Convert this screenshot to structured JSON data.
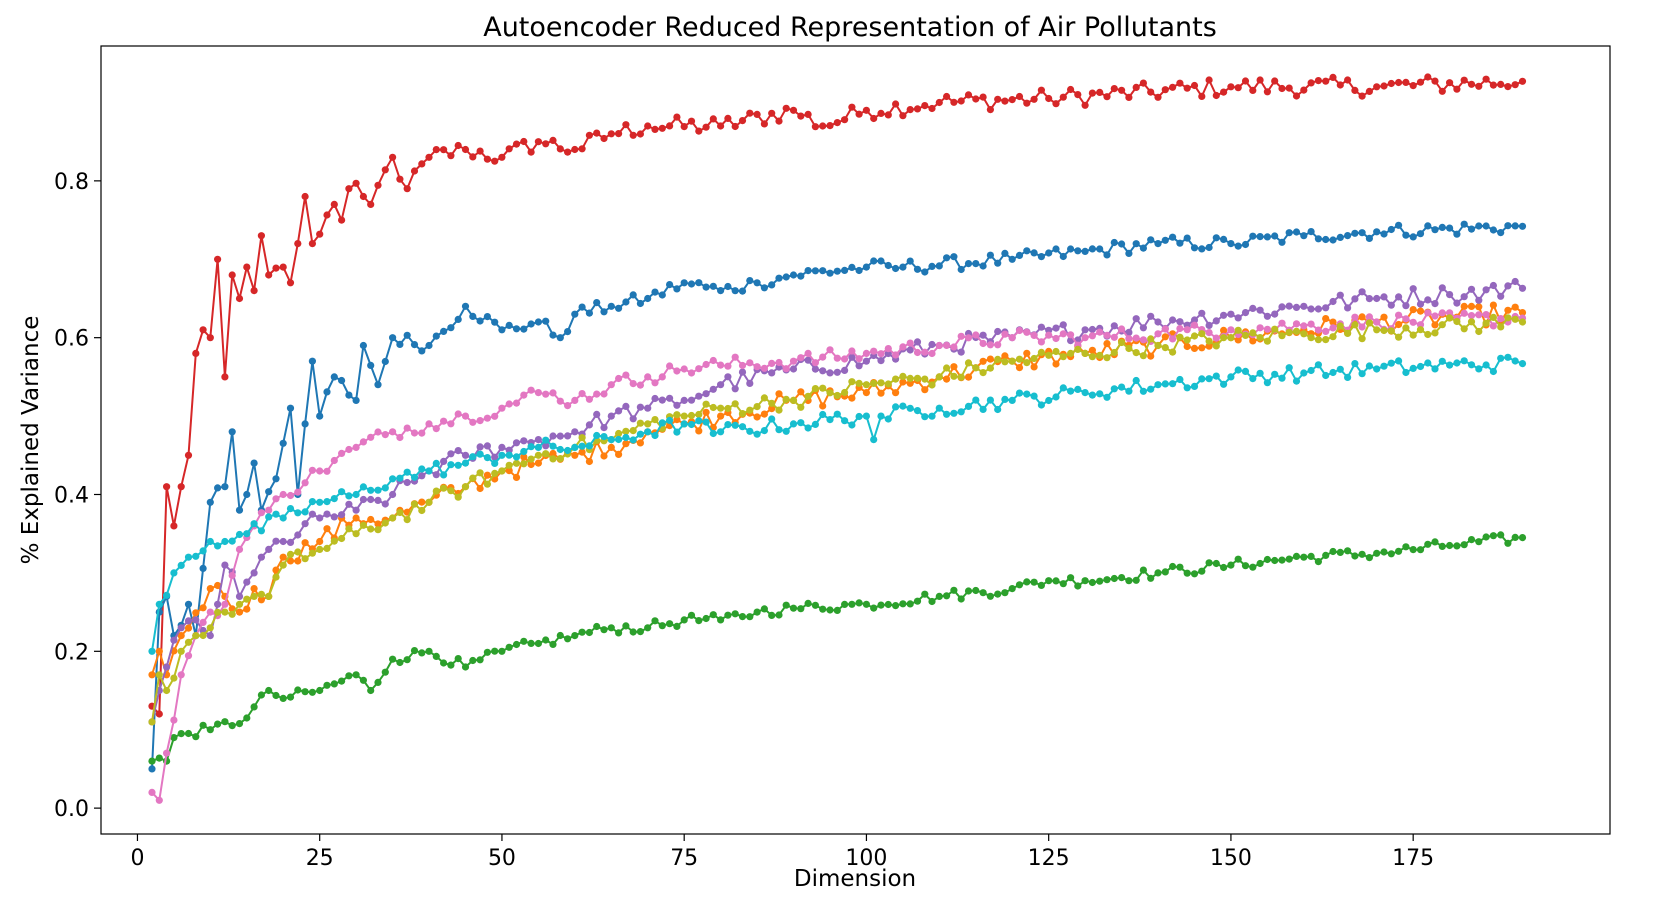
{
  "chart_data": {
    "type": "line",
    "title": "Autoencoder Reduced Representation of Air Pollutants",
    "xlabel": "Dimension",
    "ylabel": "% Explained Variance",
    "xlim": [
      -5,
      202
    ],
    "ylim": [
      -0.033,
      0.972
    ],
    "xticks": [
      0,
      25,
      50,
      75,
      100,
      125,
      150,
      175
    ],
    "yticks": [
      0.0,
      0.2,
      0.4,
      0.6,
      0.8
    ],
    "ytick_labels": [
      "0.0",
      "0.2",
      "0.4",
      "0.6",
      "0.8"
    ],
    "grid": false,
    "legend": false,
    "x_start": 2,
    "x_end": 190,
    "series": [
      {
        "color": "#d62728",
        "anchors": [
          [
            2,
            0.13
          ],
          [
            3,
            0.12
          ],
          [
            4,
            0.41
          ],
          [
            5,
            0.36
          ],
          [
            6,
            0.41
          ],
          [
            7,
            0.45
          ],
          [
            8,
            0.58
          ],
          [
            9,
            0.61
          ],
          [
            10,
            0.6
          ],
          [
            11,
            0.7
          ],
          [
            12,
            0.55
          ],
          [
            13,
            0.68
          ],
          [
            14,
            0.65
          ],
          [
            15,
            0.69
          ],
          [
            16,
            0.66
          ],
          [
            17,
            0.73
          ],
          [
            18,
            0.68
          ],
          [
            20,
            0.69
          ],
          [
            21,
            0.67
          ],
          [
            22,
            0.72
          ],
          [
            23,
            0.78
          ],
          [
            24,
            0.72
          ],
          [
            27,
            0.77
          ],
          [
            28,
            0.75
          ],
          [
            29,
            0.79
          ],
          [
            31,
            0.78
          ],
          [
            32,
            0.77
          ],
          [
            35,
            0.83
          ],
          [
            37,
            0.79
          ],
          [
            40,
            0.83
          ],
          [
            45,
            0.84
          ],
          [
            50,
            0.83
          ],
          [
            55,
            0.85
          ],
          [
            60,
            0.84
          ],
          [
            65,
            0.86
          ],
          [
            70,
            0.87
          ],
          [
            80,
            0.87
          ],
          [
            90,
            0.89
          ],
          [
            94,
            0.87
          ],
          [
            100,
            0.89
          ],
          [
            110,
            0.9
          ],
          [
            125,
            0.905
          ],
          [
            150,
            0.92
          ],
          [
            170,
            0.92
          ],
          [
            190,
            0.927
          ]
        ],
        "noise": 0.012
      },
      {
        "color": "#1f77b4",
        "anchors": [
          [
            2,
            0.05
          ],
          [
            3,
            0.25
          ],
          [
            4,
            0.27
          ],
          [
            5,
            0.22
          ],
          [
            7,
            0.26
          ],
          [
            8,
            0.22
          ],
          [
            10,
            0.39
          ],
          [
            12,
            0.41
          ],
          [
            13,
            0.48
          ],
          [
            14,
            0.38
          ],
          [
            15,
            0.4
          ],
          [
            16,
            0.44
          ],
          [
            17,
            0.38
          ],
          [
            19,
            0.42
          ],
          [
            21,
            0.51
          ],
          [
            22,
            0.4
          ],
          [
            23,
            0.49
          ],
          [
            24,
            0.57
          ],
          [
            25,
            0.5
          ],
          [
            27,
            0.55
          ],
          [
            30,
            0.52
          ],
          [
            31,
            0.59
          ],
          [
            33,
            0.54
          ],
          [
            35,
            0.6
          ],
          [
            40,
            0.59
          ],
          [
            45,
            0.64
          ],
          [
            50,
            0.61
          ],
          [
            55,
            0.62
          ],
          [
            58,
            0.6
          ],
          [
            60,
            0.63
          ],
          [
            65,
            0.64
          ],
          [
            70,
            0.65
          ],
          [
            75,
            0.67
          ],
          [
            80,
            0.66
          ],
          [
            85,
            0.67
          ],
          [
            90,
            0.68
          ],
          [
            100,
            0.69
          ],
          [
            105,
            0.69
          ],
          [
            120,
            0.7
          ],
          [
            130,
            0.71
          ],
          [
            140,
            0.72
          ],
          [
            150,
            0.72
          ],
          [
            160,
            0.73
          ],
          [
            170,
            0.735
          ],
          [
            190,
            0.742
          ]
        ],
        "noise": 0.009
      },
      {
        "color": "#2ca02c",
        "anchors": [
          [
            2,
            0.06
          ],
          [
            4,
            0.06
          ],
          [
            5,
            0.09
          ],
          [
            6,
            0.095
          ],
          [
            10,
            0.1
          ],
          [
            15,
            0.115
          ],
          [
            18,
            0.15
          ],
          [
            20,
            0.14
          ],
          [
            25,
            0.15
          ],
          [
            30,
            0.17
          ],
          [
            32,
            0.15
          ],
          [
            35,
            0.19
          ],
          [
            40,
            0.2
          ],
          [
            45,
            0.18
          ],
          [
            50,
            0.2
          ],
          [
            55,
            0.21
          ],
          [
            60,
            0.22
          ],
          [
            65,
            0.23
          ],
          [
            70,
            0.23
          ],
          [
            75,
            0.24
          ],
          [
            80,
            0.24
          ],
          [
            85,
            0.25
          ],
          [
            90,
            0.255
          ],
          [
            100,
            0.26
          ],
          [
            110,
            0.27
          ],
          [
            120,
            0.28
          ],
          [
            125,
            0.29
          ],
          [
            130,
            0.29
          ],
          [
            140,
            0.3
          ],
          [
            150,
            0.31
          ],
          [
            160,
            0.32
          ],
          [
            170,
            0.325
          ],
          [
            180,
            0.335
          ],
          [
            190,
            0.345
          ]
        ],
        "noise": 0.007
      },
      {
        "color": "#ff7f0e",
        "anchors": [
          [
            2,
            0.17
          ],
          [
            3,
            0.2
          ],
          [
            4,
            0.17
          ],
          [
            6,
            0.22
          ],
          [
            10,
            0.28
          ],
          [
            12,
            0.27
          ],
          [
            14,
            0.25
          ],
          [
            16,
            0.28
          ],
          [
            18,
            0.27
          ],
          [
            20,
            0.32
          ],
          [
            25,
            0.34
          ],
          [
            30,
            0.37
          ],
          [
            35,
            0.37
          ],
          [
            40,
            0.39
          ],
          [
            45,
            0.41
          ],
          [
            50,
            0.43
          ],
          [
            55,
            0.44
          ],
          [
            60,
            0.45
          ],
          [
            65,
            0.46
          ],
          [
            70,
            0.48
          ],
          [
            75,
            0.49
          ],
          [
            80,
            0.5
          ],
          [
            90,
            0.52
          ],
          [
            100,
            0.53
          ],
          [
            110,
            0.55
          ],
          [
            120,
            0.57
          ],
          [
            130,
            0.58
          ],
          [
            140,
            0.59
          ],
          [
            150,
            0.6
          ],
          [
            160,
            0.61
          ],
          [
            170,
            0.62
          ],
          [
            190,
            0.632
          ]
        ],
        "noise": 0.013
      },
      {
        "color": "#9467bd",
        "anchors": [
          [
            2,
            0.11
          ],
          [
            3,
            0.15
          ],
          [
            4,
            0.18
          ],
          [
            6,
            0.23
          ],
          [
            8,
            0.24
          ],
          [
            10,
            0.22
          ],
          [
            12,
            0.31
          ],
          [
            14,
            0.27
          ],
          [
            16,
            0.3
          ],
          [
            18,
            0.33
          ],
          [
            20,
            0.34
          ],
          [
            25,
            0.37
          ],
          [
            30,
            0.38
          ],
          [
            35,
            0.4
          ],
          [
            40,
            0.43
          ],
          [
            45,
            0.45
          ],
          [
            50,
            0.46
          ],
          [
            55,
            0.47
          ],
          [
            60,
            0.48
          ],
          [
            65,
            0.5
          ],
          [
            70,
            0.51
          ],
          [
            75,
            0.52
          ],
          [
            80,
            0.54
          ],
          [
            90,
            0.56
          ],
          [
            100,
            0.57
          ],
          [
            110,
            0.59
          ],
          [
            120,
            0.6
          ],
          [
            130,
            0.61
          ],
          [
            140,
            0.62
          ],
          [
            150,
            0.63
          ],
          [
            160,
            0.64
          ],
          [
            170,
            0.65
          ],
          [
            180,
            0.655
          ],
          [
            190,
            0.663
          ]
        ],
        "noise": 0.012
      },
      {
        "color": "#e377c2",
        "anchors": [
          [
            2,
            0.02
          ],
          [
            3,
            0.01
          ],
          [
            4,
            0.07
          ],
          [
            6,
            0.17
          ],
          [
            8,
            0.22
          ],
          [
            10,
            0.25
          ],
          [
            12,
            0.26
          ],
          [
            14,
            0.33
          ],
          [
            16,
            0.36
          ],
          [
            18,
            0.38
          ],
          [
            20,
            0.4
          ],
          [
            25,
            0.43
          ],
          [
            30,
            0.46
          ],
          [
            35,
            0.48
          ],
          [
            40,
            0.49
          ],
          [
            45,
            0.5
          ],
          [
            50,
            0.51
          ],
          [
            55,
            0.53
          ],
          [
            60,
            0.52
          ],
          [
            65,
            0.54
          ],
          [
            70,
            0.55
          ],
          [
            75,
            0.56
          ],
          [
            80,
            0.565
          ],
          [
            90,
            0.57
          ],
          [
            100,
            0.58
          ],
          [
            110,
            0.59
          ],
          [
            120,
            0.6
          ],
          [
            130,
            0.6
          ],
          [
            140,
            0.605
          ],
          [
            150,
            0.61
          ],
          [
            160,
            0.615
          ],
          [
            170,
            0.62
          ],
          [
            190,
            0.625
          ]
        ],
        "noise": 0.01
      },
      {
        "color": "#bcbd22",
        "anchors": [
          [
            2,
            0.11
          ],
          [
            3,
            0.17
          ],
          [
            4,
            0.15
          ],
          [
            6,
            0.2
          ],
          [
            8,
            0.22
          ],
          [
            10,
            0.23
          ],
          [
            12,
            0.25
          ],
          [
            14,
            0.26
          ],
          [
            16,
            0.27
          ],
          [
            18,
            0.27
          ],
          [
            20,
            0.31
          ],
          [
            25,
            0.33
          ],
          [
            30,
            0.35
          ],
          [
            35,
            0.37
          ],
          [
            40,
            0.39
          ],
          [
            45,
            0.41
          ],
          [
            50,
            0.43
          ],
          [
            55,
            0.45
          ],
          [
            60,
            0.46
          ],
          [
            65,
            0.47
          ],
          [
            70,
            0.49
          ],
          [
            75,
            0.5
          ],
          [
            80,
            0.51
          ],
          [
            90,
            0.52
          ],
          [
            100,
            0.54
          ],
          [
            110,
            0.55
          ],
          [
            120,
            0.57
          ],
          [
            130,
            0.58
          ],
          [
            140,
            0.59
          ],
          [
            150,
            0.6
          ],
          [
            160,
            0.605
          ],
          [
            170,
            0.61
          ],
          [
            190,
            0.62
          ]
        ],
        "noise": 0.011
      },
      {
        "color": "#17becf",
        "anchors": [
          [
            2,
            0.2
          ],
          [
            3,
            0.26
          ],
          [
            5,
            0.3
          ],
          [
            7,
            0.32
          ],
          [
            10,
            0.34
          ],
          [
            12,
            0.34
          ],
          [
            15,
            0.35
          ],
          [
            20,
            0.37
          ],
          [
            25,
            0.39
          ],
          [
            30,
            0.4
          ],
          [
            35,
            0.42
          ],
          [
            40,
            0.43
          ],
          [
            45,
            0.44
          ],
          [
            50,
            0.45
          ],
          [
            55,
            0.46
          ],
          [
            60,
            0.46
          ],
          [
            65,
            0.47
          ],
          [
            70,
            0.48
          ],
          [
            75,
            0.49
          ],
          [
            80,
            0.48
          ],
          [
            90,
            0.49
          ],
          [
            100,
            0.5
          ],
          [
            101,
            0.47
          ],
          [
            102,
            0.5
          ],
          [
            110,
            0.51
          ],
          [
            120,
            0.52
          ],
          [
            130,
            0.53
          ],
          [
            140,
            0.54
          ],
          [
            150,
            0.55
          ],
          [
            160,
            0.555
          ],
          [
            170,
            0.56
          ],
          [
            180,
            0.565
          ],
          [
            190,
            0.567
          ]
        ],
        "noise": 0.01
      }
    ]
  }
}
